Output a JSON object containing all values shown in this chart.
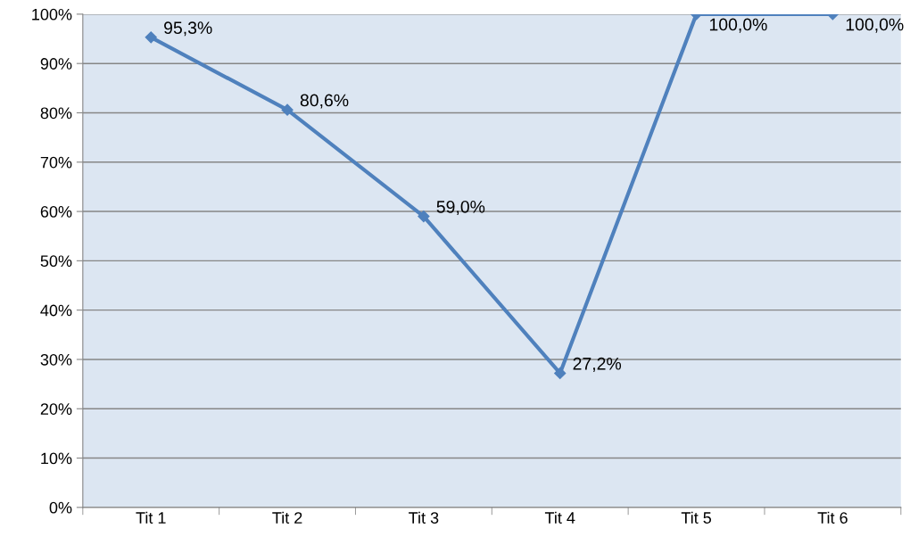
{
  "chart_data": {
    "type": "line",
    "categories": [
      "Tit 1",
      "Tit 2",
      "Tit 3",
      "Tit 4",
      "Tit 5",
      "Tit 6"
    ],
    "series": [
      {
        "color": "#4f81bd",
        "values": [
          95.3,
          80.6,
          59.0,
          27.2,
          100.0,
          100.0
        ],
        "value_labels": [
          "95,3%",
          "80,6%",
          "59,0%",
          "27,2%",
          "100,0%",
          "100,0%"
        ]
      }
    ],
    "ylim": [
      0,
      100
    ],
    "yticks": [
      {
        "value": 0,
        "label": "0%"
      },
      {
        "value": 10,
        "label": "10%"
      },
      {
        "value": 20,
        "label": "20%"
      },
      {
        "value": 30,
        "label": "30%"
      },
      {
        "value": 40,
        "label": "40%"
      },
      {
        "value": 50,
        "label": "50%"
      },
      {
        "value": 60,
        "label": "60%"
      },
      {
        "value": 70,
        "label": "70%"
      },
      {
        "value": 80,
        "label": "80%"
      },
      {
        "value": 90,
        "label": "90%"
      },
      {
        "value": 100,
        "label": "100%"
      }
    ],
    "grid": "y",
    "marker": "diamond",
    "line_style": "solid"
  }
}
